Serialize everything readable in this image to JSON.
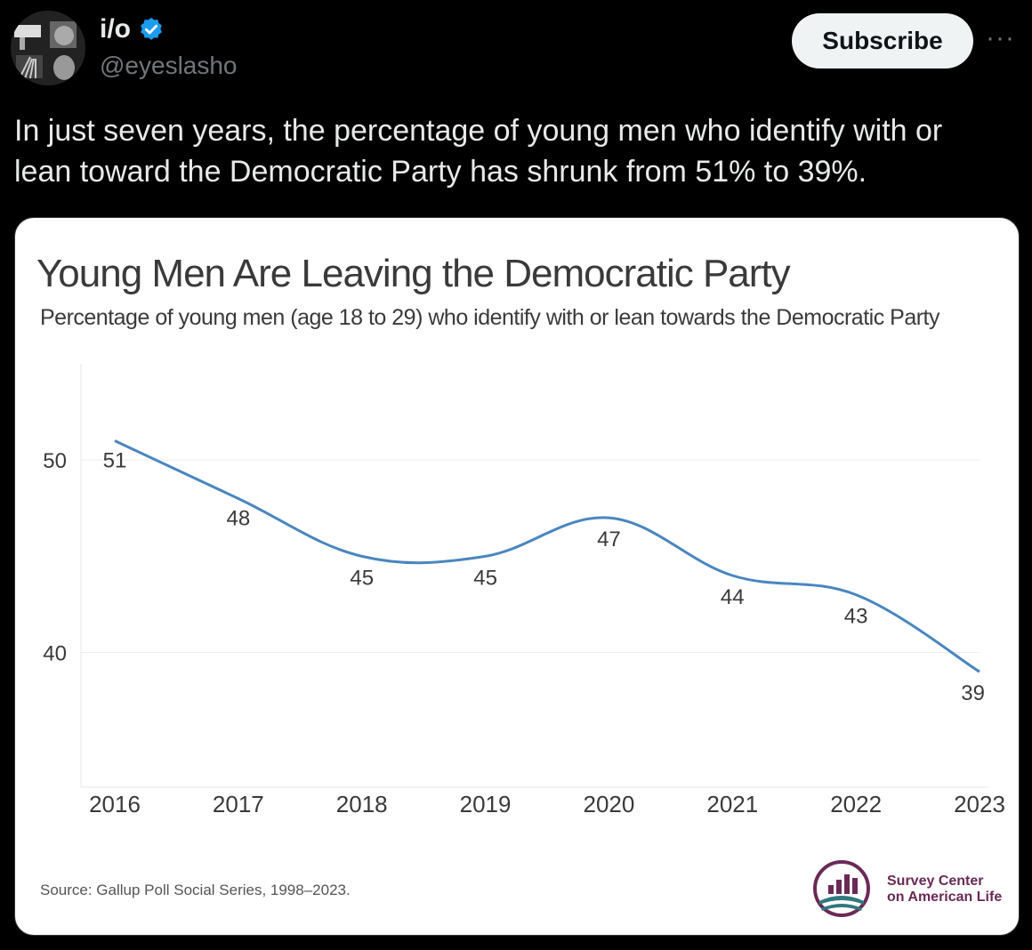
{
  "post": {
    "author_name": "i/o",
    "author_handle": "@eyeslasho",
    "verified_icon": "verified-badge-icon",
    "subscribe_label": "Subscribe",
    "more_label": "···",
    "text": "In just seven years, the percentage of young men who identify with or lean toward the Democratic Party has shrunk from 51% to 39%."
  },
  "colors": {
    "background": "#000000",
    "line": "#4a86c0",
    "verified": "#1d9bf0",
    "logo": "#6a2a57"
  },
  "card": {
    "source": "Source: Gallup Poll Social Series, 1998–2023.",
    "logo_line1": "Survey Center",
    "logo_line2": "on American Life"
  },
  "chart_data": {
    "type": "line",
    "title": "Young Men Are Leaving the Democratic Party",
    "subtitle": "Percentage of young men (age 18 to 29) who identify with or lean towards the Democratic Party",
    "categories": [
      "2016",
      "2017",
      "2018",
      "2019",
      "2020",
      "2021",
      "2022",
      "2023"
    ],
    "values": [
      51,
      48,
      45,
      45,
      47,
      44,
      43,
      39
    ],
    "yticks": [
      50,
      40
    ],
    "ylim": [
      33,
      55
    ],
    "grid": true,
    "smooth": true
  }
}
